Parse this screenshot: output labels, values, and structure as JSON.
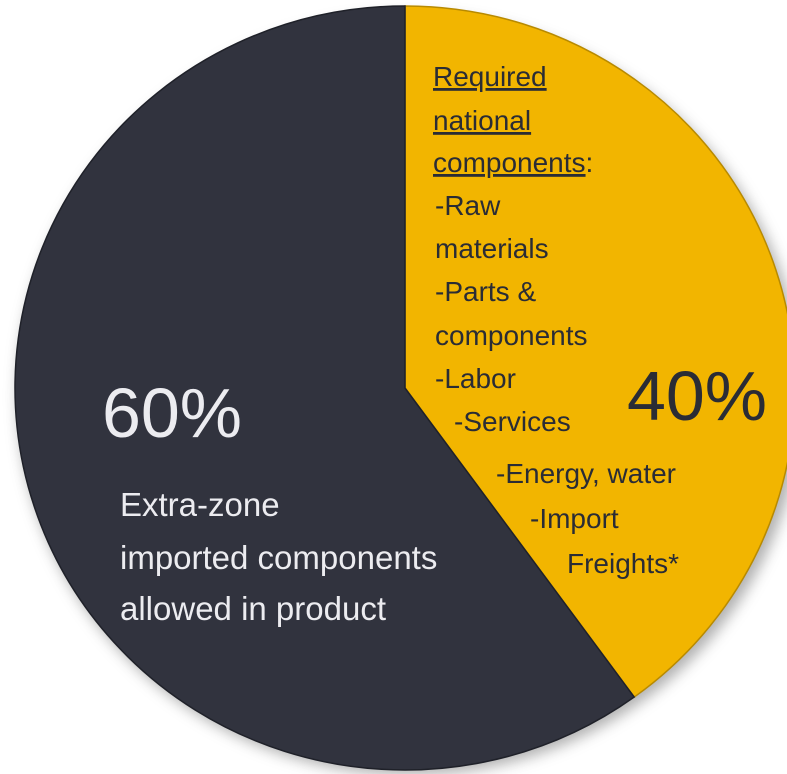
{
  "chart_data": {
    "type": "pie",
    "start_angle_deg": 0,
    "direction": "clockwise",
    "colors": {
      "background": "#ffffff",
      "shadow": "#6f6f6f",
      "national": "#f2b500",
      "national_edge": "#b88a00",
      "extra": "#31333e",
      "extra_edge": "#1f2129",
      "text_light": "#ececf0",
      "text_dark": "#2a2c35"
    },
    "slices": [
      {
        "value": 40,
        "label": "40%",
        "color": "#f2b500",
        "heading": [
          "Required",
          "national",
          "components"
        ],
        "heading_suffix": ":",
        "items": [
          "-Raw",
          "materials",
          "-Parts &",
          "components",
          "-Labor",
          "-Services",
          "-Energy, water",
          "-Import",
          "Freights*"
        ]
      },
      {
        "value": 60,
        "label": "60%",
        "color": "#31333e",
        "description": [
          "Extra-zone",
          "imported components",
          "allowed in product"
        ]
      }
    ]
  }
}
